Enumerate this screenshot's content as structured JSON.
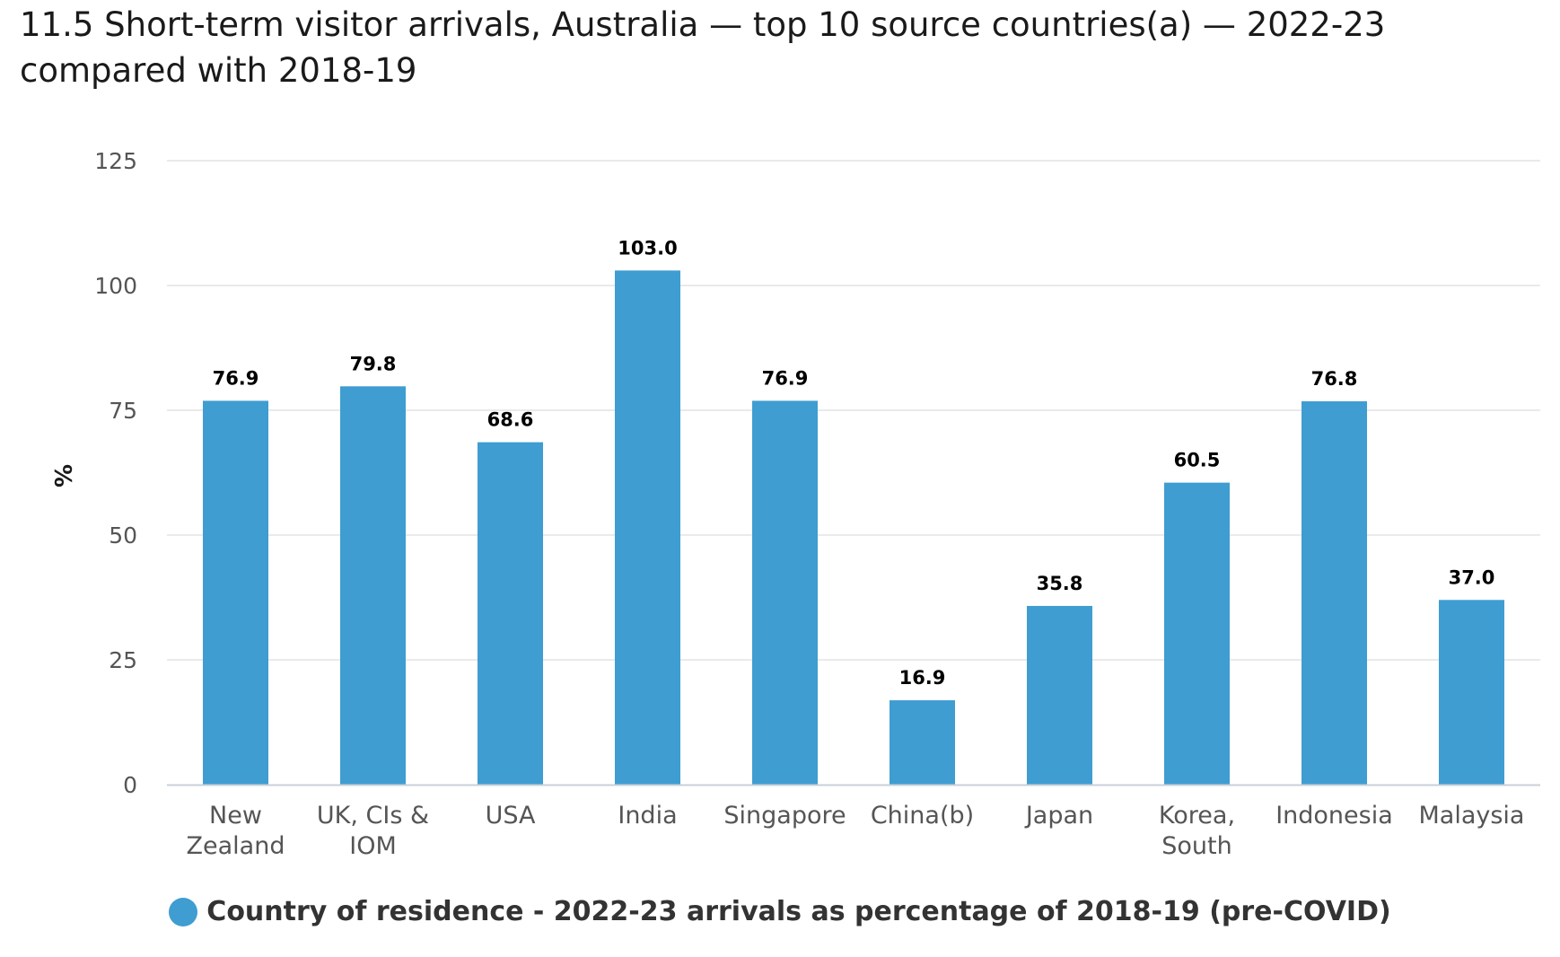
{
  "chart_data": {
    "type": "bar",
    "title": "11.5 Short-term visitor arrivals, Australia — top 10 source countries(a) — 2022-23 compared with 2018-19",
    "xlabel": "",
    "ylabel": "%",
    "ylim": [
      0,
      125
    ],
    "yticks": [
      0,
      25,
      50,
      75,
      100,
      125
    ],
    "grid": true,
    "legend_position": "bottom",
    "categories": [
      [
        "New",
        "Zealand"
      ],
      [
        "UK, CIs &",
        "IOM"
      ],
      [
        "USA"
      ],
      [
        "India"
      ],
      [
        "Singapore"
      ],
      [
        "China(b)"
      ],
      [
        "Japan"
      ],
      [
        "Korea,",
        "South"
      ],
      [
        "Indonesia"
      ],
      [
        "Malaysia"
      ]
    ],
    "series": [
      {
        "name": "Country of residence - 2022-23 arrivals as percentage of 2018-19 (pre-COVID)",
        "values": [
          76.9,
          79.8,
          68.6,
          103.0,
          76.9,
          16.9,
          35.8,
          60.5,
          76.8,
          37.0
        ],
        "labels": [
          "76.9",
          "79.8",
          "68.6",
          "103.0",
          "76.9",
          "16.9",
          "35.8",
          "60.5",
          "76.8",
          "37.0"
        ],
        "color": "#3f9dd1"
      }
    ]
  },
  "colors": {
    "bar": "#3f9dd1",
    "grid": "#e3e3e3",
    "axis": "#c8d0d8"
  }
}
